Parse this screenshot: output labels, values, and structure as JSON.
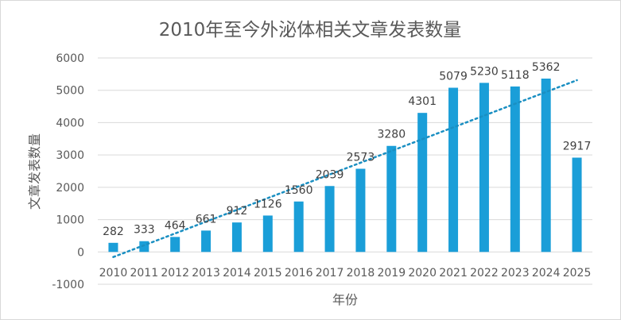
{
  "chart_data": {
    "type": "bar",
    "title": "2010年至今外泌体相关文章发表数量",
    "xlabel": "年份",
    "ylabel": "文章发表数量",
    "categories": [
      "2010",
      "2011",
      "2012",
      "2013",
      "2014",
      "2015",
      "2016",
      "2017",
      "2018",
      "2019",
      "2020",
      "2021",
      "2022",
      "2023",
      "2024",
      "2025"
    ],
    "values": [
      282,
      333,
      464,
      661,
      912,
      1126,
      1560,
      2039,
      2573,
      3280,
      4301,
      5079,
      5230,
      5118,
      5362,
      2917
    ],
    "ylim": [
      -1000,
      6000
    ],
    "yticks": [
      -1000,
      0,
      1000,
      2000,
      3000,
      4000,
      5000,
      6000
    ],
    "grid": true,
    "trendline": "linear, dotted",
    "bar_color": "#1a9ed8",
    "trend_color": "#1a8fc2"
  }
}
